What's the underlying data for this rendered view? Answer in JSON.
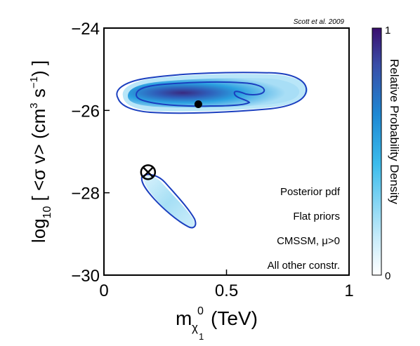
{
  "chart_data": {
    "type": "heatmap",
    "citation": "Scott et al. 2009",
    "xlabel": {
      "base": "m",
      "sub": "χ",
      "subsub": "1",
      "sup": "0",
      "unit": "(TeV)"
    },
    "ylabel": {
      "pre": "log",
      "sub": "10",
      "mid": "[ <σ v> (cm",
      "sup3": "3",
      "mid2": " s",
      "supm1": "−1",
      "post": ") ]"
    },
    "xlim": [
      0,
      1
    ],
    "ylim": [
      -30,
      -24
    ],
    "x_ticks": [
      {
        "value": 0,
        "label": "0"
      },
      {
        "value": 0.5,
        "label": "0.5"
      },
      {
        "value": 1,
        "label": "1"
      }
    ],
    "y_ticks": [
      {
        "value": -30,
        "label": "−30"
      },
      {
        "value": -28,
        "label": "−28"
      },
      {
        "value": -26,
        "label": "−26"
      },
      {
        "value": -24,
        "label": "−24"
      }
    ],
    "colorbar": {
      "label": "Relative Probability Density",
      "min_label": "0",
      "max_label": "1",
      "colors": [
        "#ffffff",
        "#c8ecfa",
        "#3cbcec",
        "#1e88d4",
        "#3a4ea8",
        "#3a0e6e"
      ]
    },
    "annotations": [
      "Posterior pdf",
      "Flat priors",
      "CMSSM, μ>0",
      "All other constr."
    ],
    "best_fit": {
      "x": 0.385,
      "y": -25.85
    },
    "benchmark_marker": {
      "x": 0.18,
      "y": -27.5,
      "symbol": "circled-x"
    },
    "regions": [
      {
        "name": "upper-region",
        "x_range": [
          0.08,
          0.82
        ],
        "y_range": [
          -26.1,
          -25.3
        ],
        "peak": {
          "x": 0.3,
          "y": -25.65
        }
      },
      {
        "name": "lower-region",
        "x_range": [
          0.16,
          0.38
        ],
        "y_range": [
          -28.9,
          -27.3
        ],
        "peak": {
          "x": 0.27,
          "y": -28.3
        }
      }
    ]
  }
}
